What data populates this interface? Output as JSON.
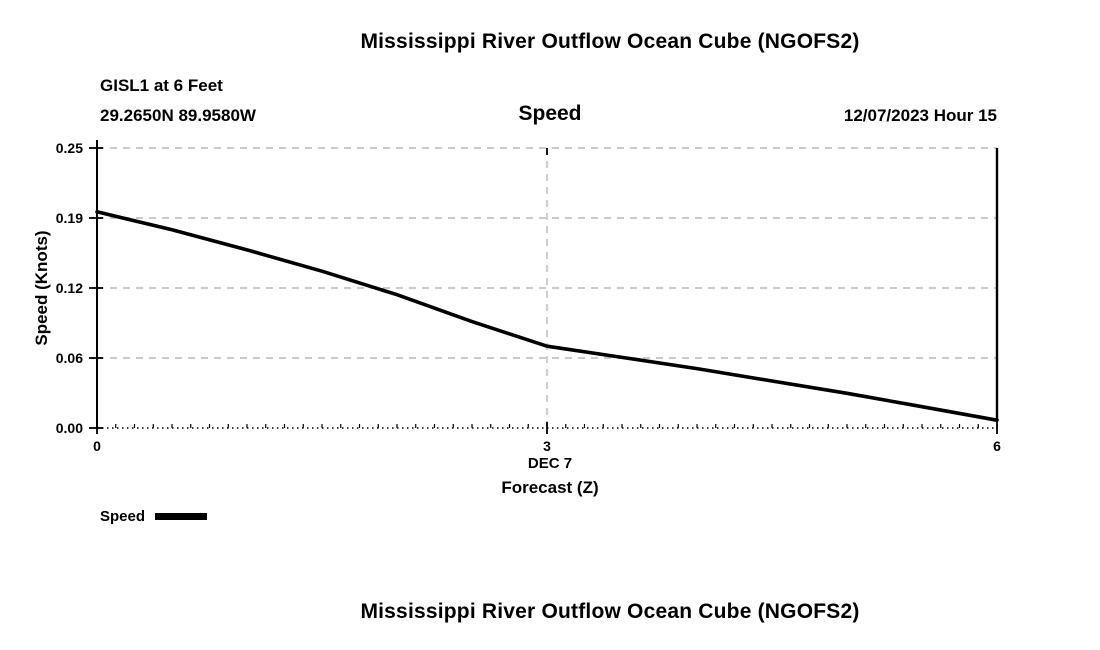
{
  "titles": {
    "top": "Mississippi River Outflow Ocean Cube (NGOFS2)",
    "bottom": "Mississippi River Outflow Ocean Cube (NGOFS2)"
  },
  "header": {
    "station": "GISL1 at 6 Feet",
    "coordinates": "29.2650N  89.9580W",
    "plot_label": "Speed",
    "datetime": "12/07/2023 Hour 15"
  },
  "axes": {
    "ylabel": "Speed (Knots)",
    "y_ticks": [
      "0.25",
      "0.19",
      "0.12",
      "0.06",
      "0.00"
    ],
    "x_ticks": [
      "0",
      "3",
      "6"
    ],
    "x_label_line1": "DEC 7",
    "x_label_line2": "Forecast (Z)"
  },
  "legend": {
    "label": "Speed"
  },
  "colors": {
    "line": "#000000",
    "grid": "#b8b8b8",
    "axis": "#000000"
  },
  "chart_data": {
    "type": "line",
    "title": "Speed",
    "subtitle": "Mississippi River Outflow Ocean Cube (NGOFS2)",
    "xlabel": "Forecast (Z) — DEC 7",
    "ylabel": "Speed (Knots)",
    "xlim": [
      0,
      6
    ],
    "ylim": [
      0,
      0.25
    ],
    "y_tick_values": [
      0.25,
      0.1875,
      0.125,
      0.0625,
      0
    ],
    "y_tick_labels": [
      "0.25",
      "0.19",
      "0.12",
      "0.06",
      "0.00"
    ],
    "x_tick_values": [
      0,
      3,
      6
    ],
    "x_tick_labels": [
      "0",
      "3",
      "6"
    ],
    "grid": true,
    "legend_position": "bottom-left",
    "x": [
      0,
      0.5,
      1,
      1.5,
      2,
      2.5,
      3,
      3.5,
      4,
      4.5,
      5,
      5.5,
      6
    ],
    "series": [
      {
        "name": "Speed",
        "values": [
          0.193,
          0.177,
          0.159,
          0.14,
          0.119,
          0.095,
          0.073,
          0.063,
          0.053,
          0.042,
          0.031,
          0.019,
          0.007
        ]
      }
    ]
  }
}
